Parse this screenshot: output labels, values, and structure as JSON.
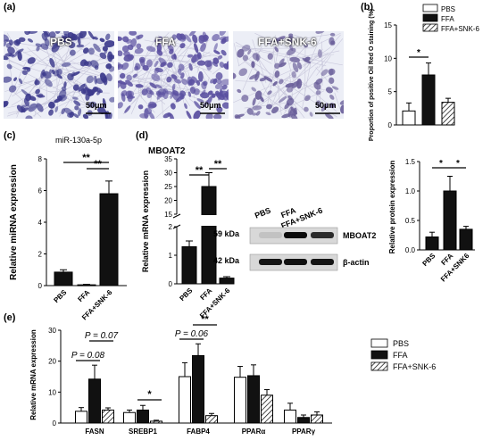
{
  "panels": {
    "a": {
      "label": "(a)",
      "images": [
        {
          "title": "PBS",
          "scale": "50μm",
          "tint": "#3c3a8c",
          "density": 150
        },
        {
          "title": "FFA",
          "scale": "50μm",
          "tint": "#5a4fa0",
          "density": 170
        },
        {
          "title": "FFA+SNK-6",
          "scale": "50μm",
          "tint": "#6a5f9a",
          "density": 90
        }
      ]
    },
    "b": {
      "label": "(b)"
    },
    "c": {
      "label": "(c)"
    },
    "d": {
      "label": "(d)",
      "blot": {
        "lanes": [
          "PBS",
          "FFA",
          "FFA+SNK-6"
        ],
        "rows": [
          {
            "kda": "59 kDa",
            "protein": "MBOAT2",
            "intensity": [
              0.1,
              0.95,
              0.8
            ]
          },
          {
            "kda": "42 kDa",
            "protein": "β-actin",
            "intensity": [
              0.9,
              0.92,
              0.9
            ]
          }
        ]
      }
    },
    "e": {
      "label": "(e)"
    }
  },
  "chart_data": [
    {
      "id": "b",
      "type": "bar",
      "categories": [
        "PBS",
        "FFA",
        "FFA+SNK-6"
      ],
      "series": [
        {
          "name": "PBS",
          "values": [
            2.1,
            null,
            null
          ],
          "errors": [
            1.2,
            null,
            null
          ]
        },
        {
          "name": "FFA",
          "values": [
            null,
            7.5,
            null
          ],
          "errors": [
            null,
            1.8,
            null
          ]
        },
        {
          "name": "FFA+SNK-6",
          "values": [
            null,
            null,
            3.4
          ],
          "errors": [
            null,
            null,
            0.6
          ]
        }
      ],
      "ylabel": "Proportion of positive Oil Red O staining (%)",
      "ylim": [
        0,
        15
      ],
      "yticks": [
        0,
        5,
        10,
        15
      ],
      "legend": "top-right",
      "annotations": [
        {
          "from": 0,
          "to": 1,
          "text": "*"
        }
      ]
    },
    {
      "id": "c",
      "type": "bar",
      "title": "miR-130a-5p",
      "categories": [
        "PBS",
        "FFA",
        "FFA+SNK-6"
      ],
      "values": [
        0.85,
        0.05,
        5.8
      ],
      "errors": [
        0.15,
        0.03,
        0.8
      ],
      "ylabel": "Relative miRNA expression",
      "ylim": [
        0,
        8
      ],
      "yticks": [
        0,
        2,
        4,
        6,
        8
      ],
      "annotations": [
        {
          "from": 0,
          "to": 2,
          "text": "**"
        },
        {
          "from": 1,
          "to": 2,
          "text": "**"
        }
      ]
    },
    {
      "id": "d1",
      "type": "bar",
      "title": "MBOAT2",
      "categories": [
        "PBS",
        "FFA",
        "FFA+SNK-6"
      ],
      "values": [
        1.3,
        25,
        0.2
      ],
      "errors": [
        0.2,
        5,
        0.05
      ],
      "ylabel": "Relative mRNA expression",
      "ylim": [
        0,
        35
      ],
      "broken_axis": [
        2,
        15
      ],
      "yticks": [
        0,
        1,
        2,
        15,
        20,
        25,
        30,
        35
      ],
      "annotations": [
        {
          "from": 0,
          "to": 1,
          "text": "**"
        },
        {
          "from": 1,
          "to": 2,
          "text": "**"
        }
      ]
    },
    {
      "id": "d2",
      "type": "bar",
      "categories": [
        "PBS",
        "FFA",
        "FFA+SNK6"
      ],
      "values": [
        0.22,
        1.0,
        0.35
      ],
      "errors": [
        0.08,
        0.25,
        0.05
      ],
      "ylabel": "Relative protein expression",
      "ylim": [
        0,
        1.5
      ],
      "yticks": [
        "0.0",
        "0.5",
        "1.0",
        "1.5"
      ],
      "annotations": [
        {
          "from": 0,
          "to": 1,
          "text": "*"
        },
        {
          "from": 1,
          "to": 2,
          "text": "*"
        }
      ]
    },
    {
      "id": "e",
      "type": "bar",
      "categories": [
        "FASN",
        "SREBP1",
        "FABP4",
        "PPARα",
        "PPARγ"
      ],
      "series": [
        {
          "name": "PBS",
          "values": [
            3.8,
            3.4,
            15,
            14.8,
            4.2
          ],
          "errors": [
            1.2,
            0.8,
            4.5,
            3.5,
            2.2
          ]
        },
        {
          "name": "FFA",
          "values": [
            14.2,
            4.2,
            21.8,
            15.3,
            1.8
          ],
          "errors": [
            4.5,
            1.5,
            3.8,
            3.5,
            0.8
          ]
        },
        {
          "name": "FFA+SNK-6",
          "values": [
            4.2,
            0.6,
            2.4,
            9,
            2.6
          ],
          "errors": [
            0.7,
            0.3,
            0.7,
            1.8,
            1
          ]
        }
      ],
      "ylabel": "Relative mRNA expression",
      "ylim": [
        0,
        30
      ],
      "yticks": [
        0,
        10,
        20,
        30
      ],
      "legend": "right",
      "annotations": [
        {
          "group": 0,
          "from": 0,
          "to": 1,
          "text": "P = 0.08"
        },
        {
          "group": 0,
          "from": 1,
          "to": 2,
          "text": "P = 0.07"
        },
        {
          "group": 1,
          "from": 1,
          "to": 2,
          "text": "*"
        },
        {
          "group": 2,
          "from": 0,
          "to": 1,
          "text": "P = 0.06"
        },
        {
          "group": 2,
          "from": 1,
          "to": 2,
          "text": "**"
        }
      ]
    }
  ]
}
